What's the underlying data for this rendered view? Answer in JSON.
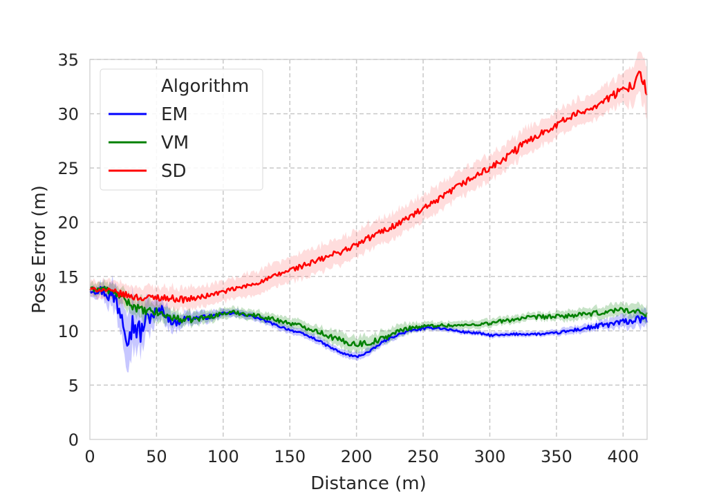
{
  "chart_data": {
    "type": "line",
    "title": "",
    "xlabel": "Distance (m)",
    "ylabel": "Pose Error (m)",
    "xlim": [
      0,
      418
    ],
    "ylim": [
      0,
      35
    ],
    "xticks": [
      0,
      50,
      100,
      150,
      200,
      250,
      300,
      350,
      400
    ],
    "yticks": [
      0,
      5,
      10,
      15,
      20,
      25,
      30,
      35
    ],
    "grid": true,
    "legend": {
      "title": "Algorithm",
      "placement": "top-left"
    },
    "series": [
      {
        "name": "EM",
        "color": "#0000ff",
        "band_color": "#0000ff",
        "x": [
          0,
          10,
          20,
          25,
          28,
          33,
          38,
          42,
          48,
          55,
          60,
          65,
          70,
          80,
          90,
          100,
          110,
          120,
          130,
          140,
          150,
          160,
          170,
          180,
          190,
          200,
          210,
          220,
          230,
          240,
          250,
          260,
          270,
          280,
          290,
          300,
          310,
          320,
          330,
          340,
          350,
          360,
          370,
          380,
          390,
          400,
          410,
          418
        ],
        "y": [
          13.8,
          13.7,
          12.8,
          11.5,
          10.2,
          10.6,
          9.8,
          11.0,
          11.6,
          11.9,
          11.0,
          10.7,
          11.1,
          11.2,
          11.3,
          11.6,
          11.6,
          11.4,
          11.0,
          10.5,
          10.1,
          9.7,
          9.2,
          8.5,
          7.9,
          7.6,
          8.1,
          9.0,
          9.6,
          10.0,
          10.2,
          10.3,
          10.1,
          9.9,
          9.8,
          9.6,
          9.6,
          9.7,
          9.7,
          9.7,
          9.8,
          10.0,
          10.2,
          10.4,
          10.6,
          10.8,
          11.0,
          11.1
        ],
        "spread": [
          0.4,
          0.6,
          1.2,
          1.8,
          2.2,
          1.8,
          1.6,
          1.4,
          1.0,
          0.8,
          0.8,
          0.6,
          0.5,
          0.5,
          0.4,
          0.3,
          0.3,
          0.3,
          0.3,
          0.3,
          0.3,
          0.3,
          0.3,
          0.3,
          0.3,
          0.3,
          0.3,
          0.3,
          0.3,
          0.2,
          0.2,
          0.2,
          0.2,
          0.2,
          0.2,
          0.2,
          0.2,
          0.2,
          0.2,
          0.2,
          0.2,
          0.3,
          0.3,
          0.3,
          0.4,
          0.5,
          0.6,
          0.7
        ],
        "noise": [
          0.3,
          0.5,
          1.2,
          1.5,
          1.6,
          1.3,
          1.1,
          0.8,
          0.6,
          0.5,
          0.4,
          0.3,
          0.3,
          0.2,
          0.2,
          0.1,
          0.1,
          0.1,
          0.1,
          0.1,
          0.1,
          0.1,
          0.1,
          0.1,
          0.1,
          0.1,
          0.1,
          0.1,
          0.1,
          0.1,
          0.1,
          0.1,
          0.1,
          0.1,
          0.1,
          0.1,
          0.1,
          0.1,
          0.1,
          0.1,
          0.1,
          0.15,
          0.2,
          0.25,
          0.3,
          0.3,
          0.35,
          0.35
        ]
      },
      {
        "name": "VM",
        "color": "#008000",
        "band_color": "#008000",
        "x": [
          0,
          10,
          20,
          30,
          40,
          50,
          60,
          70,
          80,
          90,
          100,
          110,
          120,
          130,
          140,
          150,
          160,
          170,
          180,
          190,
          200,
          210,
          220,
          230,
          240,
          250,
          260,
          270,
          280,
          290,
          300,
          310,
          320,
          330,
          340,
          350,
          360,
          370,
          380,
          390,
          400,
          410,
          418
        ],
        "y": [
          13.8,
          13.9,
          13.4,
          12.5,
          11.8,
          11.7,
          11.3,
          11.0,
          11.1,
          11.3,
          11.6,
          11.7,
          11.5,
          11.3,
          11.0,
          10.7,
          10.4,
          10.0,
          9.5,
          9.0,
          8.8,
          8.9,
          9.3,
          9.9,
          10.3,
          10.4,
          10.5,
          10.5,
          10.5,
          10.6,
          10.7,
          10.9,
          11.1,
          11.2,
          11.3,
          11.3,
          11.4,
          11.5,
          11.6,
          11.8,
          12.0,
          11.7,
          11.6
        ],
        "spread": [
          0.4,
          0.5,
          0.6,
          0.7,
          0.8,
          0.7,
          0.6,
          0.5,
          0.5,
          0.4,
          0.4,
          0.4,
          0.4,
          0.4,
          0.4,
          0.4,
          0.4,
          0.4,
          0.5,
          0.6,
          0.6,
          0.6,
          0.5,
          0.5,
          0.4,
          0.3,
          0.3,
          0.3,
          0.3,
          0.3,
          0.3,
          0.3,
          0.3,
          0.3,
          0.3,
          0.3,
          0.4,
          0.4,
          0.4,
          0.5,
          0.5,
          0.6,
          0.6
        ],
        "noise": [
          0.2,
          0.3,
          0.3,
          0.4,
          0.4,
          0.4,
          0.3,
          0.3,
          0.3,
          0.2,
          0.2,
          0.2,
          0.2,
          0.2,
          0.2,
          0.2,
          0.2,
          0.2,
          0.25,
          0.3,
          0.3,
          0.3,
          0.25,
          0.2,
          0.2,
          0.15,
          0.15,
          0.15,
          0.15,
          0.15,
          0.15,
          0.2,
          0.2,
          0.2,
          0.2,
          0.2,
          0.2,
          0.2,
          0.25,
          0.25,
          0.25,
          0.3,
          0.3
        ]
      },
      {
        "name": "SD",
        "color": "#ff0000",
        "band_color": "#ff6666",
        "x": [
          0,
          10,
          20,
          30,
          40,
          50,
          60,
          70,
          80,
          90,
          100,
          110,
          120,
          130,
          140,
          150,
          160,
          170,
          180,
          190,
          200,
          210,
          220,
          230,
          240,
          250,
          260,
          270,
          280,
          290,
          300,
          310,
          320,
          330,
          340,
          350,
          360,
          370,
          380,
          390,
          400,
          405,
          410,
          414,
          418
        ],
        "y": [
          13.8,
          13.8,
          13.5,
          13.2,
          13.0,
          13.1,
          13.0,
          12.9,
          13.0,
          13.3,
          13.6,
          13.9,
          14.2,
          14.6,
          15.1,
          15.6,
          16.0,
          16.4,
          16.9,
          17.4,
          17.9,
          18.6,
          19.2,
          19.8,
          20.5,
          21.2,
          21.9,
          22.8,
          23.6,
          24.3,
          25.0,
          25.7,
          26.7,
          27.6,
          28.3,
          29.0,
          29.7,
          30.2,
          30.8,
          31.5,
          32.2,
          32.6,
          33.1,
          33.5,
          32.0
        ],
        "spread": [
          0.6,
          0.7,
          0.8,
          0.8,
          0.8,
          0.8,
          0.8,
          0.8,
          0.8,
          0.8,
          0.8,
          0.8,
          0.9,
          0.9,
          0.9,
          1.0,
          1.0,
          1.0,
          1.0,
          1.0,
          1.0,
          1.0,
          1.0,
          1.0,
          1.0,
          1.0,
          1.0,
          1.0,
          1.0,
          1.0,
          1.0,
          1.0,
          1.0,
          1.0,
          1.0,
          1.0,
          1.0,
          1.0,
          1.0,
          1.1,
          1.2,
          1.4,
          1.6,
          1.8,
          1.8
        ],
        "noise": [
          0.2,
          0.2,
          0.3,
          0.3,
          0.3,
          0.3,
          0.3,
          0.3,
          0.25,
          0.2,
          0.2,
          0.2,
          0.2,
          0.2,
          0.25,
          0.25,
          0.25,
          0.3,
          0.3,
          0.3,
          0.3,
          0.3,
          0.3,
          0.3,
          0.3,
          0.3,
          0.3,
          0.3,
          0.3,
          0.3,
          0.3,
          0.3,
          0.4,
          0.3,
          0.3,
          0.3,
          0.3,
          0.3,
          0.3,
          0.35,
          0.4,
          0.5,
          0.6,
          0.6,
          0.6
        ]
      }
    ]
  }
}
